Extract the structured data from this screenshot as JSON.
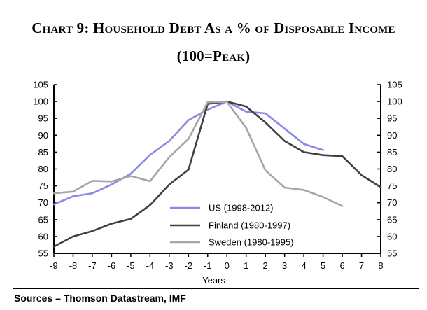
{
  "chart_data": {
    "type": "line",
    "title": "Chart 9: Household Debt As a % of Disposable Income",
    "subtitle": "(100=Peak)",
    "xlabel": "Years",
    "ylabel": "",
    "x_ticks": [
      "-9",
      "-8",
      "-7",
      "-6",
      "-5",
      "-4",
      "-3",
      "-2",
      "-1",
      "0",
      "1",
      "2",
      "3",
      "4",
      "5",
      "6",
      "7",
      "8"
    ],
    "y_ticks": [
      "55",
      "60",
      "65",
      "70",
      "75",
      "80",
      "85",
      "90",
      "95",
      "100",
      "105"
    ],
    "xlim": [
      -9,
      8
    ],
    "ylim": [
      55,
      105
    ],
    "grid": false,
    "legend_position": "lower-center",
    "series": [
      {
        "name": "US (1998-2012)",
        "color": "#8a8ae6",
        "x": [
          -9,
          -8,
          -7,
          -6,
          -5,
          -4,
          -3,
          -2,
          -1,
          0,
          1,
          2,
          3,
          4,
          5
        ],
        "y": [
          69.5,
          71.9,
          72.8,
          75.4,
          78.6,
          84.2,
          88.3,
          94.5,
          97.6,
          100,
          97,
          96.5,
          92,
          87.4,
          85.6
        ]
      },
      {
        "name": "Finland (1980-1997)",
        "color": "#404040",
        "x": [
          -9,
          -8,
          -7,
          -6,
          -5,
          -4,
          -3,
          -2,
          -1,
          0,
          1,
          2,
          3,
          4,
          5,
          6,
          7,
          8
        ],
        "y": [
          57,
          60,
          61.6,
          63.8,
          65.2,
          69.3,
          75.4,
          79.8,
          99.3,
          100,
          98.5,
          93.8,
          88.3,
          85,
          84.1,
          83.8,
          78.2,
          74.6
        ]
      },
      {
        "name": "Sweden (1980-1995)",
        "color": "#a6a6a6",
        "x": [
          -9,
          -8,
          -7,
          -6,
          -5,
          -4,
          -3,
          -2,
          -1,
          0,
          1,
          2,
          3,
          4,
          5,
          6
        ],
        "y": [
          72.8,
          73.3,
          76.5,
          76.3,
          77.9,
          76.4,
          83.5,
          88.9,
          99.8,
          99.9,
          92.2,
          79.6,
          74.5,
          73.8,
          71.7,
          69
        ]
      }
    ]
  },
  "footer": {
    "sources": "Sources – Thomson Datastream, IMF"
  }
}
